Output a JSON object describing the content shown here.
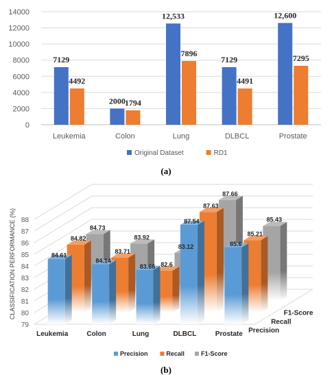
{
  "chart_data": [
    {
      "type": "bar",
      "categories": [
        "Leukemia",
        "Colon",
        "Lung",
        "DLBCL",
        "Prostate"
      ],
      "series": [
        {
          "name": "Original Dataset",
          "values": [
            7129,
            2000,
            12533,
            7129,
            12600
          ],
          "color": "#4472C4"
        },
        {
          "name": "RD1",
          "values": [
            4492,
            1794,
            7896,
            4491,
            7295
          ],
          "color": "#ED7D31"
        }
      ],
      "data_labels": [
        [
          "7129",
          "2000",
          "12,533",
          "7129",
          "12,600"
        ],
        [
          "4492",
          "1794",
          "7896",
          "4491",
          "7295"
        ]
      ],
      "yticks": [
        "0",
        "2000",
        "4000",
        "6000",
        "8000",
        "10000",
        "12000",
        "14000"
      ],
      "ylim": [
        0,
        14000
      ],
      "grid": true,
      "legend": "bottom",
      "caption": "(a)"
    },
    {
      "type": "bar",
      "subtype": "3d-clustered",
      "categories": [
        "Leukemia",
        "Colon",
        "Lung",
        "DLBCL",
        "Prostate"
      ],
      "series": [
        {
          "name": "Precision",
          "values": [
            84.61,
            84.14,
            83.66,
            87.54,
            85.6
          ],
          "color": "#5B9BD5"
        },
        {
          "name": "Recall",
          "values": [
            84.82,
            83.71,
            82.6,
            87.63,
            85.21
          ],
          "color": "#ED7D31"
        },
        {
          "name": "F1-Score",
          "values": [
            84.73,
            83.92,
            83.12,
            87.66,
            85.43
          ],
          "color": "#A5A5A5"
        }
      ],
      "data_labels": [
        [
          "84.61",
          "84.14",
          "83.66",
          "87.54",
          "85.6"
        ],
        [
          "84.82",
          "83.71",
          "82.6",
          "87.63",
          "85.21"
        ],
        [
          "84.73",
          "83.92",
          "83.12",
          "87.66",
          "85.43"
        ]
      ],
      "depth_labels": [
        "F1-Score",
        "Recall",
        "Precision"
      ],
      "ylabel": "CLASSIFICATION PERFORMANCE (%)",
      "yticks": [
        "79",
        "80",
        "81",
        "82",
        "83",
        "84",
        "85",
        "86",
        "87",
        "88"
      ],
      "ylim": [
        79,
        88
      ],
      "grid": true,
      "legend": "bottom",
      "caption": "(b)"
    }
  ]
}
